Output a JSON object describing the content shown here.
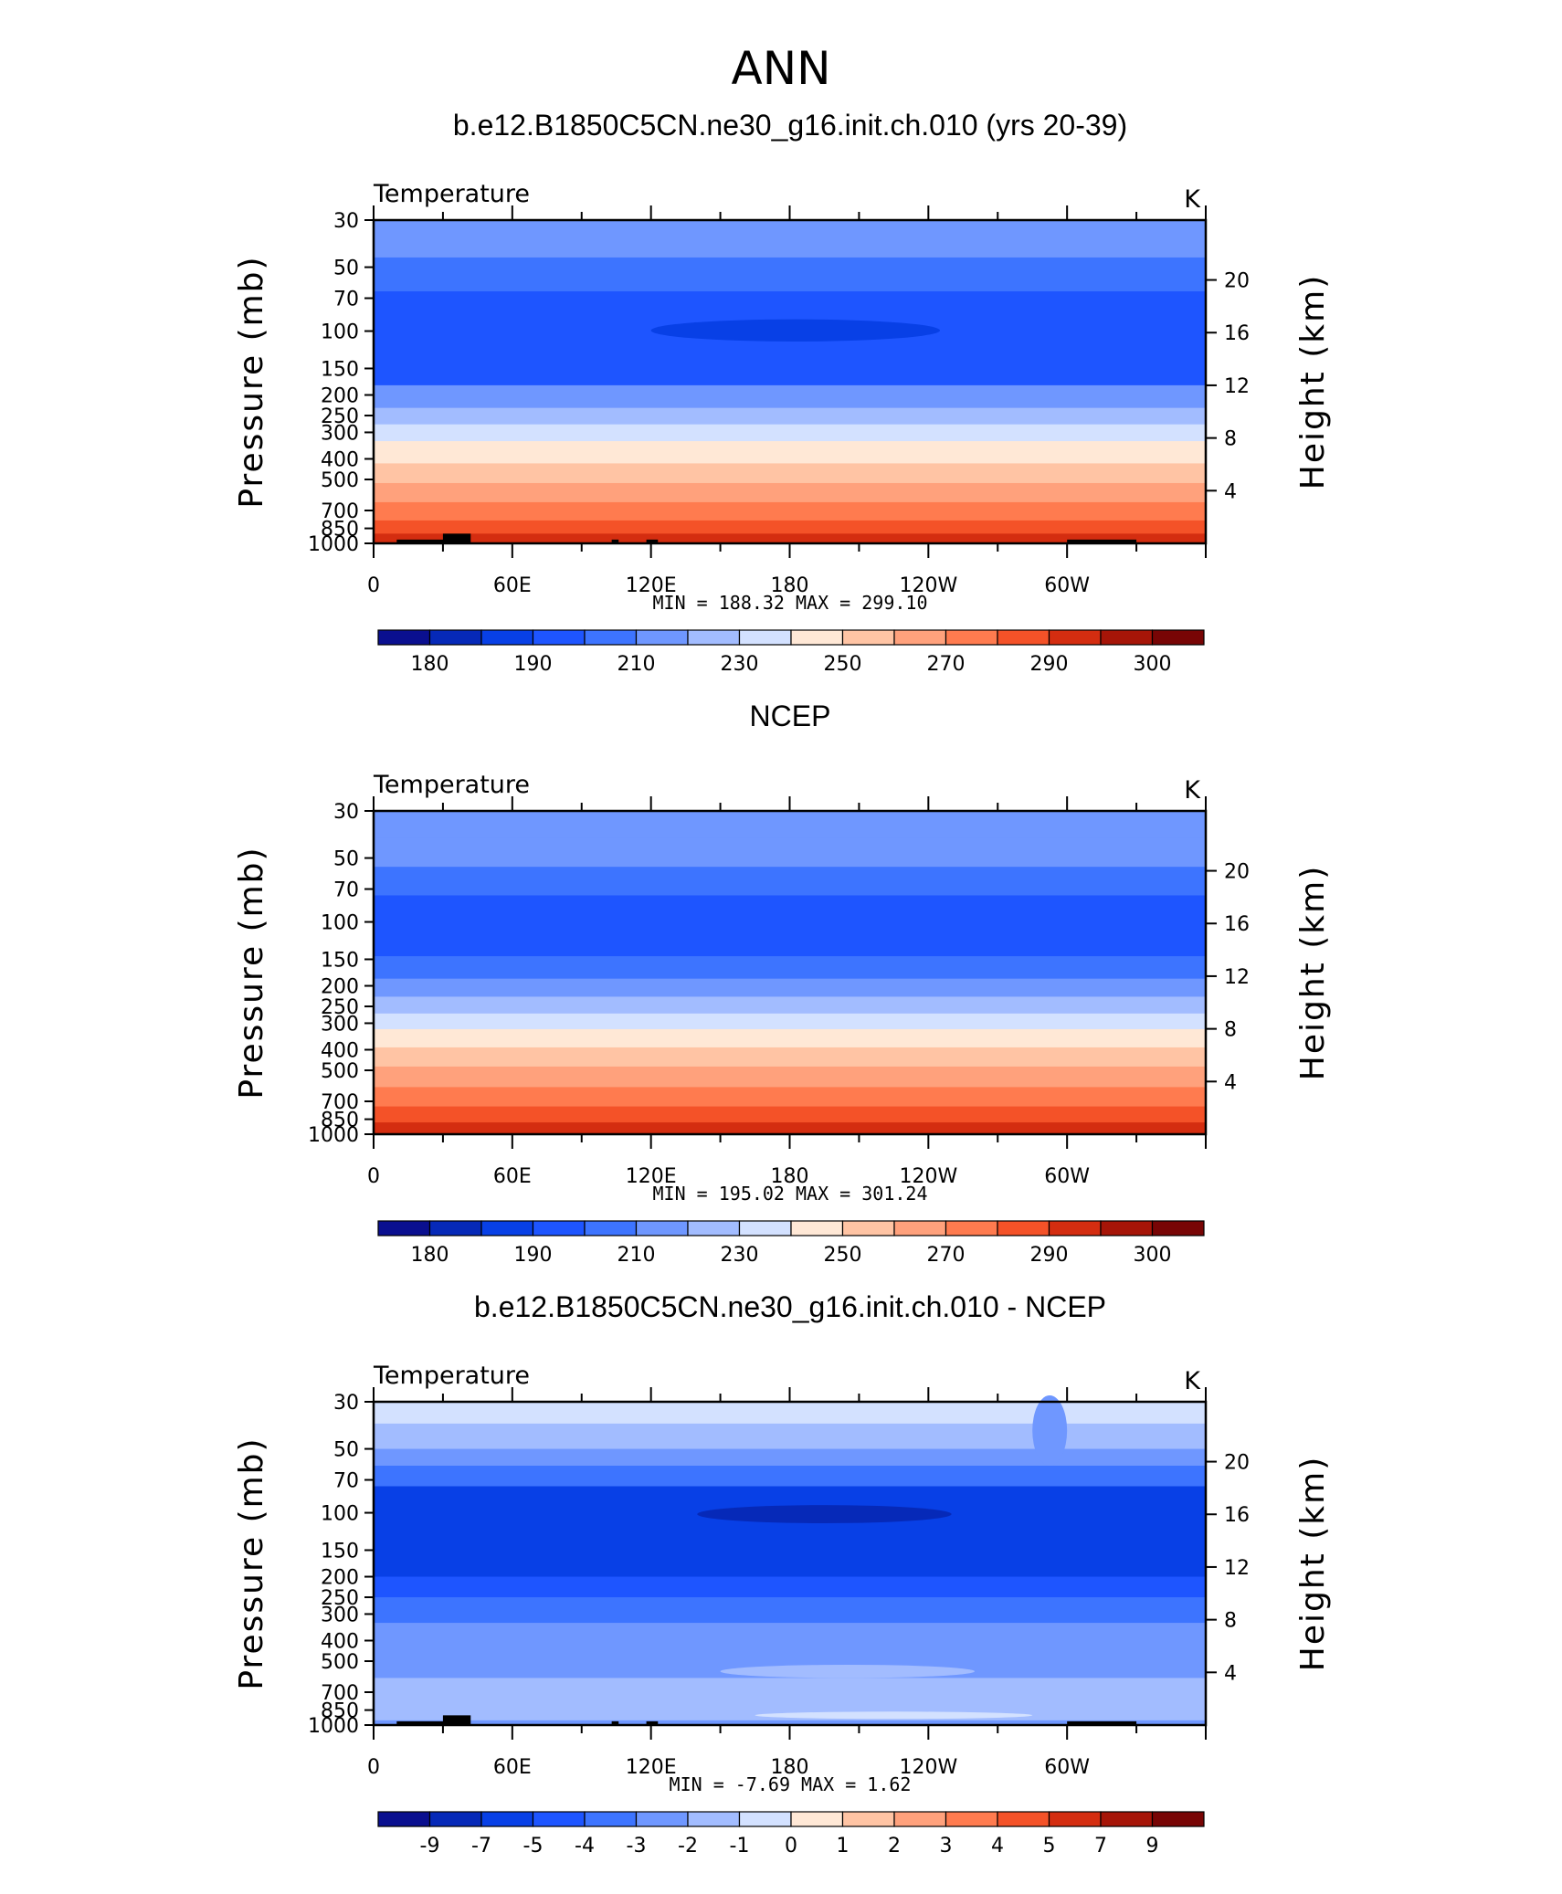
{
  "figure_title": "ANN",
  "colors": {
    "abs_palette": [
      "#0a0f8f",
      "#0629b8",
      "#0840e6",
      "#1e55ff",
      "#3d74ff",
      "#6f97ff",
      "#a2bcff",
      "#d3e1ff",
      "#ffe8d6",
      "#ffc4a4",
      "#ffa17c",
      "#ff7b4f",
      "#f45228",
      "#d42d10",
      "#a61508",
      "#780505"
    ],
    "diff_palette": [
      "#0a0f8f",
      "#0629b8",
      "#0840e6",
      "#1e55ff",
      "#3d74ff",
      "#6f97ff",
      "#a2bcff",
      "#d3e1ff",
      "#ffe8d6",
      "#ffc4a4",
      "#ffa17c",
      "#ff7b4f",
      "#f45228",
      "#d42d10",
      "#a61508",
      "#780505"
    ],
    "terrain": "#000000"
  },
  "chart_data": [
    {
      "type": "heatmap",
      "panel_title": "b.e12.B1850C5CN.ne30_g16.init.ch.010 (yrs 20-39)",
      "variable_label": "Temperature",
      "units_label": "K",
      "ylabel": "Pressure (mb)",
      "ylabel_right": "Height (km)",
      "x_ticks": [
        "0",
        "60E",
        "120E",
        "180",
        "120W",
        "60W"
      ],
      "y_ticks": [
        "30",
        "50",
        "70",
        "100",
        "150",
        "200",
        "250",
        "300",
        "400",
        "500",
        "700",
        "850",
        "1000"
      ],
      "y_ticks_right": [
        "20",
        "16",
        "12",
        "8",
        "4"
      ],
      "min_max": "MIN =  188.32   MAX =  299.10",
      "colorbar_labels": [
        "180",
        "190",
        "210",
        "230",
        "250",
        "270",
        "290",
        "300"
      ],
      "profile_bins": [
        {
          "p": 30,
          "bin": 5
        },
        {
          "p": 45,
          "bin": 4
        },
        {
          "p": 65,
          "bin": 3
        },
        {
          "p": 100,
          "bin": 3
        },
        {
          "p": 140,
          "bin": 3
        },
        {
          "p": 180,
          "bin": 5
        },
        {
          "p": 230,
          "bin": 6
        },
        {
          "p": 275,
          "bin": 7
        },
        {
          "p": 330,
          "bin": 8
        },
        {
          "p": 420,
          "bin": 9
        },
        {
          "p": 520,
          "bin": 10
        },
        {
          "p": 640,
          "bin": 11
        },
        {
          "p": 780,
          "bin": 12
        },
        {
          "p": 900,
          "bin": 13
        },
        {
          "p": 1000,
          "bin": 13
        }
      ],
      "blobs": [
        {
          "lon_from": 120,
          "lon_to": 245,
          "p_from": 88,
          "p_to": 112,
          "bin": 2
        }
      ],
      "terrain": [
        {
          "lon_from": 10,
          "lon_to": 40,
          "p": 960
        },
        {
          "lon_from": 30,
          "lon_to": 42,
          "p": 900
        },
        {
          "lon_from": 103,
          "lon_to": 106,
          "p": 960
        },
        {
          "lon_from": 118,
          "lon_to": 123,
          "p": 960
        },
        {
          "lon_from": 300,
          "lon_to": 330,
          "p": 960
        }
      ]
    },
    {
      "type": "heatmap",
      "panel_title": "NCEP",
      "variable_label": "Temperature",
      "units_label": "K",
      "ylabel": "Pressure (mb)",
      "ylabel_right": "Height (km)",
      "x_ticks": [
        "0",
        "60E",
        "120E",
        "180",
        "120W",
        "60W"
      ],
      "y_ticks": [
        "30",
        "50",
        "70",
        "100",
        "150",
        "200",
        "250",
        "300",
        "400",
        "500",
        "700",
        "850",
        "1000"
      ],
      "y_ticks_right": [
        "20",
        "16",
        "12",
        "8",
        "4"
      ],
      "min_max": "MIN =  195.02   MAX =  301.24",
      "colorbar_labels": [
        "180",
        "190",
        "210",
        "230",
        "250",
        "270",
        "290",
        "300"
      ],
      "profile_bins": [
        {
          "p": 30,
          "bin": 5
        },
        {
          "p": 40,
          "bin": 5
        },
        {
          "p": 55,
          "bin": 4
        },
        {
          "p": 75,
          "bin": 3
        },
        {
          "p": 110,
          "bin": 3
        },
        {
          "p": 145,
          "bin": 4
        },
        {
          "p": 185,
          "bin": 5
        },
        {
          "p": 225,
          "bin": 6
        },
        {
          "p": 270,
          "bin": 7
        },
        {
          "p": 320,
          "bin": 8
        },
        {
          "p": 390,
          "bin": 9
        },
        {
          "p": 480,
          "bin": 10
        },
        {
          "p": 600,
          "bin": 11
        },
        {
          "p": 740,
          "bin": 12
        },
        {
          "p": 880,
          "bin": 13
        },
        {
          "p": 1000,
          "bin": 14
        }
      ],
      "blobs": [],
      "terrain": []
    },
    {
      "type": "heatmap",
      "panel_title": "b.e12.B1850C5CN.ne30_g16.init.ch.010 - NCEP",
      "variable_label": "Temperature",
      "units_label": "K",
      "ylabel": "Pressure (mb)",
      "ylabel_right": "Height (km)",
      "x_ticks": [
        "0",
        "60E",
        "120E",
        "180",
        "120W",
        "60W"
      ],
      "y_ticks": [
        "30",
        "50",
        "70",
        "100",
        "150",
        "200",
        "250",
        "300",
        "400",
        "500",
        "700",
        "850",
        "1000"
      ],
      "y_ticks_right": [
        "20",
        "16",
        "12",
        "8",
        "4"
      ],
      "min_max": "MIN =   -7.69   MAX =    1.62",
      "colorbar_labels": [
        "-9",
        "-7",
        "-5",
        "-4",
        "-3",
        "-2",
        "-1",
        "0",
        "1",
        "2",
        "3",
        "4",
        "5",
        "7",
        "9"
      ],
      "profile_bins": [
        {
          "p": 30,
          "bin": 7
        },
        {
          "p": 38,
          "bin": 6
        },
        {
          "p": 50,
          "bin": 5
        },
        {
          "p": 60,
          "bin": 4
        },
        {
          "p": 75,
          "bin": 2
        },
        {
          "p": 160,
          "bin": 2
        },
        {
          "p": 200,
          "bin": 3
        },
        {
          "p": 250,
          "bin": 4
        },
        {
          "p": 330,
          "bin": 5
        },
        {
          "p": 450,
          "bin": 5
        },
        {
          "p": 600,
          "bin": 6
        },
        {
          "p": 800,
          "bin": 6
        },
        {
          "p": 950,
          "bin": 5
        },
        {
          "p": 1000,
          "bin": 6
        }
      ],
      "blobs": [
        {
          "lon_from": 140,
          "lon_to": 250,
          "p_from": 92,
          "p_to": 112,
          "bin": 1
        },
        {
          "lon_from": 150,
          "lon_to": 260,
          "p_from": 520,
          "p_to": 600,
          "bin": 6
        },
        {
          "lon_from": 165,
          "lon_to": 285,
          "p_from": 870,
          "p_to": 930,
          "bin": 7
        },
        {
          "lon_from": 285,
          "lon_to": 300,
          "p_from": 28,
          "p_to": 60,
          "bin": 5
        }
      ],
      "terrain": [
        {
          "lon_from": 10,
          "lon_to": 40,
          "p": 960
        },
        {
          "lon_from": 30,
          "lon_to": 42,
          "p": 900
        },
        {
          "lon_from": 103,
          "lon_to": 106,
          "p": 960
        },
        {
          "lon_from": 118,
          "lon_to": 123,
          "p": 960
        },
        {
          "lon_from": 300,
          "lon_to": 330,
          "p": 960
        }
      ]
    }
  ]
}
